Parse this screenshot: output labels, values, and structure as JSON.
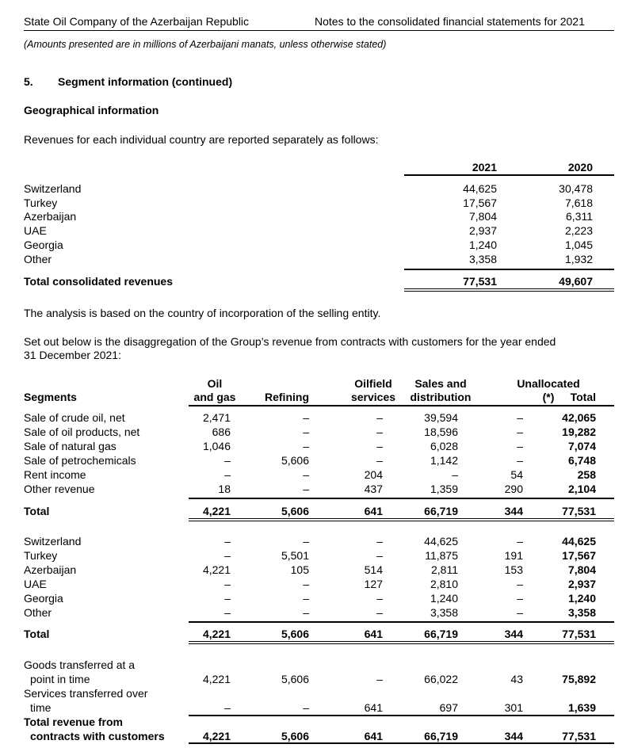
{
  "header": {
    "company": "State Oil Company of the Azerbaijan Republic",
    "notes_title": "Notes to the consolidated financial statements for 2021",
    "amounts_note": "(Amounts presented are in millions of Azerbaijani manats, unless otherwise stated)"
  },
  "section": {
    "number": "5.",
    "title": "Segment information (continued)",
    "subtitle": "Geographical information",
    "intro": "Revenues for each individual country are reported separately as follows:",
    "analysis_note": "The analysis is based on the country of incorporation of the selling entity.",
    "disaggregation_intro_1": "Set out below is the disaggregation of the Group’s revenue from contracts with customers for the year ended",
    "disaggregation_intro_2": "31 December 2021:"
  },
  "country_table": {
    "columns": [
      "2021",
      "2020"
    ],
    "rows": [
      {
        "label": "Switzerland",
        "values": [
          "44,625",
          "30,478"
        ]
      },
      {
        "label": "Turkey",
        "values": [
          "17,567",
          "7,618"
        ]
      },
      {
        "label": "Azerbaijan",
        "values": [
          "7,804",
          "6,311"
        ]
      },
      {
        "label": "UAE",
        "values": [
          "2,937",
          "2,223"
        ]
      },
      {
        "label": "Georgia",
        "values": [
          "1,240",
          "1,045"
        ]
      },
      {
        "label": "Other",
        "values": [
          "3,358",
          "1,932"
        ]
      }
    ],
    "total": {
      "label": "Total consolidated revenues",
      "values": [
        "77,531",
        "49,607"
      ]
    }
  },
  "segment_table": {
    "label_header": "Segments",
    "columns": [
      {
        "line1": "Oil",
        "line2": "and gas"
      },
      {
        "line1": "",
        "line2": "Refining"
      },
      {
        "line1": "Oilfield",
        "line2": "services"
      },
      {
        "line1": "Sales and",
        "line2": "distribution"
      },
      {
        "line1": "Unallocated",
        "line2": "(*)"
      },
      {
        "line1": "",
        "line2": "Total"
      }
    ],
    "by_type": [
      {
        "label": "Sale of crude oil, net",
        "values": [
          "2,471",
          "–",
          "–",
          "39,594",
          "–",
          "42,065"
        ]
      },
      {
        "label": "Sale of oil products, net",
        "values": [
          "686",
          "–",
          "–",
          "18,596",
          "–",
          "19,282"
        ]
      },
      {
        "label": "Sale of natural gas",
        "values": [
          "1,046",
          "–",
          "–",
          "6,028",
          "–",
          "7,074"
        ]
      },
      {
        "label": "Sale of petrochemicals",
        "values": [
          "–",
          "5,606",
          "–",
          "1,142",
          "–",
          "6,748"
        ]
      },
      {
        "label": "Rent income",
        "values": [
          "–",
          "–",
          "204",
          "–",
          "54",
          "258"
        ]
      },
      {
        "label": "Other revenue",
        "values": [
          "18",
          "–",
          "437",
          "1,359",
          "290",
          "2,104"
        ]
      }
    ],
    "by_type_total": {
      "label": "Total",
      "values": [
        "4,221",
        "5,606",
        "641",
        "66,719",
        "344",
        "77,531"
      ]
    },
    "by_country": [
      {
        "label": "Switzerland",
        "values": [
          "–",
          "–",
          "–",
          "44,625",
          "–",
          "44,625"
        ]
      },
      {
        "label": "Turkey",
        "values": [
          "–",
          "5,501",
          "–",
          "11,875",
          "191",
          "17,567"
        ]
      },
      {
        "label": "Azerbaijan",
        "values": [
          "4,221",
          "105",
          "514",
          "2,811",
          "153",
          "7,804"
        ]
      },
      {
        "label": "UAE",
        "values": [
          "–",
          "–",
          "127",
          "2,810",
          "–",
          "2,937"
        ]
      },
      {
        "label": "Georgia",
        "values": [
          "–",
          "–",
          "–",
          "1,240",
          "–",
          "1,240"
        ]
      },
      {
        "label": "Other",
        "values": [
          "–",
          "–",
          "–",
          "3,358",
          "–",
          "3,358"
        ]
      }
    ],
    "by_country_total": {
      "label": "Total",
      "values": [
        "4,221",
        "5,606",
        "641",
        "66,719",
        "344",
        "77,531"
      ]
    },
    "by_timing": [
      {
        "label1": "Goods transferred at a",
        "label2": "point in time",
        "values": [
          "4,221",
          "5,606",
          "–",
          "66,022",
          "43",
          "75,892"
        ]
      },
      {
        "label1": "Services transferred over",
        "label2": "time",
        "values": [
          "–",
          "–",
          "641",
          "697",
          "301",
          "1,639"
        ]
      }
    ],
    "by_timing_total": {
      "label1": "Total revenue from",
      "label2": "contracts with customers",
      "values": [
        "4,221",
        "5,606",
        "641",
        "66,719",
        "344",
        "77,531"
      ]
    }
  }
}
